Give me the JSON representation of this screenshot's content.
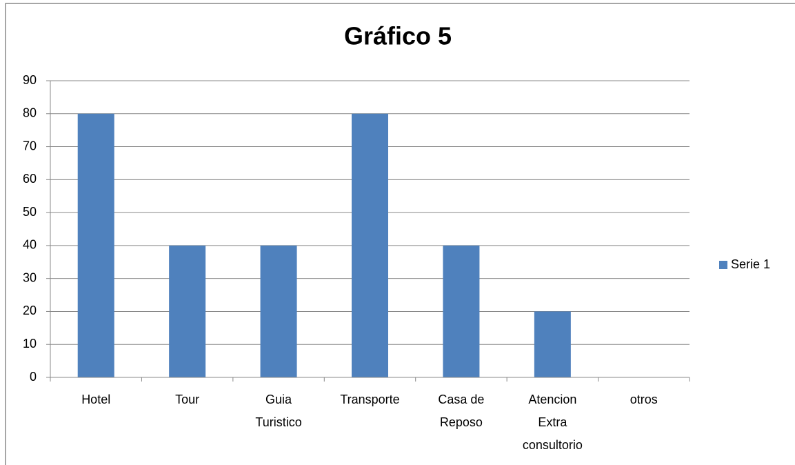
{
  "chart_data": {
    "type": "bar",
    "title": "Gráfico 5",
    "categories": [
      "Hotel",
      "Tour",
      "Guia Turistico",
      "Transporte",
      "Casa de Reposo",
      "Atencion Extra consultorio",
      "otros"
    ],
    "series": [
      {
        "name": "Serie 1",
        "color": "#4f81bd",
        "values": [
          80,
          40,
          40,
          80,
          40,
          20,
          0
        ]
      }
    ],
    "ylim": [
      0,
      90
    ],
    "yticks": [
      0,
      10,
      20,
      30,
      40,
      50,
      60,
      70,
      80,
      90
    ],
    "grid": true,
    "legend": "right"
  }
}
